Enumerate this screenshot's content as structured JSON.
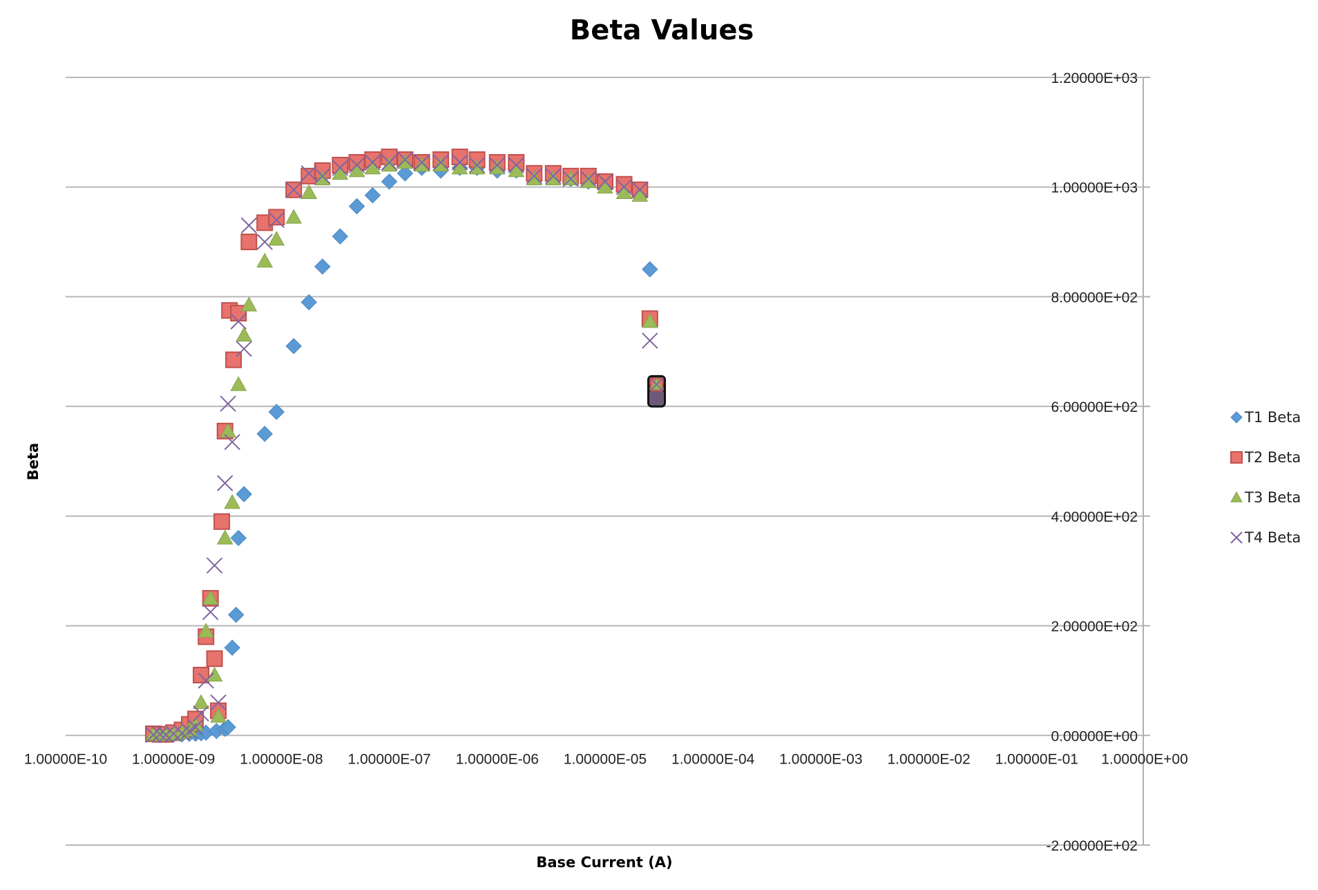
{
  "chart_data": {
    "type": "scatter",
    "title": "Beta Values",
    "xlabel": "Base Current (A)",
    "ylabel": "Beta",
    "x_scale": "log",
    "xlim": [
      1e-10,
      1
    ],
    "ylim": [
      -200,
      1200
    ],
    "x_tick_labels": [
      "1.00000E-10",
      "1.00000E-09",
      "1.00000E-08",
      "1.00000E-07",
      "1.00000E-06",
      "1.00000E-05",
      "1.00000E-04",
      "1.00000E-03",
      "1.00000E-02",
      "1.00000E-01",
      "1.00000E+00"
    ],
    "y_tick_labels": [
      "-2.00000E+02",
      "0.00000E+00",
      "2.00000E+02",
      "4.00000E+02",
      "6.00000E+02",
      "8.00000E+02",
      "1.00000E+03",
      "1.20000E+03"
    ],
    "y_tick_values": [
      -200,
      0,
      200,
      400,
      600,
      800,
      1000,
      1200
    ],
    "grid": true,
    "legend_position": "right",
    "series": [
      {
        "name": "T1 Beta",
        "marker": "diamond",
        "color": "#5b9bd5",
        "x": [
          6.5e-10,
          7.5e-10,
          8.5e-10,
          1e-09,
          1.2e-09,
          1.4e-09,
          1.6e-09,
          1.8e-09,
          2e-09,
          2.5e-09,
          3e-09,
          3.2e-09,
          3.5e-09,
          3.8e-09,
          4e-09,
          4.5e-09,
          7e-09,
          9e-09,
          1.3e-08,
          1.8e-08,
          2.4e-08,
          3.5e-08,
          5e-08,
          7e-08,
          1e-07,
          1.4e-07,
          2e-07,
          3e-07,
          4.5e-07,
          6.5e-07,
          1e-06,
          1.5e-06,
          2.2e-06,
          3.3e-06,
          4.8e-06,
          7e-06,
          1e-05,
          1.5e-05,
          2.1e-05,
          2.6e-05
        ],
        "y": [
          2,
          1,
          1,
          2,
          2,
          3,
          3,
          4,
          5,
          8,
          12,
          15,
          160,
          220,
          360,
          440,
          550,
          590,
          710,
          790,
          855,
          910,
          965,
          985,
          1010,
          1025,
          1035,
          1030,
          1035,
          1035,
          1030,
          1030,
          1025,
          1020,
          1015,
          1010,
          1005,
          1000,
          990,
          850
        ]
      },
      {
        "name": "T2 Beta",
        "marker": "square",
        "color": "#e8736c",
        "x": [
          6.5e-10,
          7.5e-10,
          8.5e-10,
          1e-09,
          1.2e-09,
          1.4e-09,
          1.6e-09,
          1.8e-09,
          2e-09,
          2.2e-09,
          2.4e-09,
          2.6e-09,
          2.8e-09,
          3e-09,
          3.3e-09,
          3.6e-09,
          4e-09,
          5e-09,
          7e-09,
          9e-09,
          1.3e-08,
          1.8e-08,
          2.4e-08,
          3.5e-08,
          5e-08,
          7e-08,
          1e-07,
          1.4e-07,
          2e-07,
          3e-07,
          4.5e-07,
          6.5e-07,
          1e-06,
          1.5e-06,
          2.2e-06,
          3.3e-06,
          4.8e-06,
          7e-06,
          1e-05,
          1.5e-05,
          2.1e-05,
          2.6e-05
        ],
        "y": [
          3,
          2,
          2,
          5,
          10,
          20,
          30,
          110,
          180,
          250,
          140,
          45,
          390,
          555,
          775,
          685,
          770,
          900,
          935,
          945,
          995,
          1020,
          1030,
          1040,
          1045,
          1050,
          1055,
          1050,
          1045,
          1050,
          1055,
          1050,
          1045,
          1045,
          1025,
          1025,
          1020,
          1020,
          1010,
          1005,
          995,
          760
        ]
      },
      {
        "name": "T3 Beta",
        "marker": "triangle",
        "color": "#9bbb59",
        "x": [
          6.5e-10,
          7.5e-10,
          8.5e-10,
          1e-09,
          1.2e-09,
          1.4e-09,
          1.6e-09,
          1.8e-09,
          2e-09,
          2.2e-09,
          2.4e-09,
          2.6e-09,
          3e-09,
          3.2e-09,
          3.5e-09,
          4e-09,
          4.5e-09,
          5e-09,
          7e-09,
          9e-09,
          1.3e-08,
          1.8e-08,
          2.4e-08,
          3.5e-08,
          5e-08,
          7e-08,
          1e-07,
          1.4e-07,
          2e-07,
          3e-07,
          4.5e-07,
          6.5e-07,
          1e-06,
          1.5e-06,
          2.2e-06,
          3.3e-06,
          4.8e-06,
          7e-06,
          1e-05,
          1.5e-05,
          2.1e-05,
          2.6e-05
        ],
        "y": [
          2,
          1,
          2,
          3,
          5,
          10,
          20,
          60,
          190,
          250,
          110,
          35,
          360,
          555,
          425,
          640,
          730,
          785,
          865,
          905,
          945,
          990,
          1015,
          1025,
          1030,
          1035,
          1040,
          1045,
          1040,
          1040,
          1035,
          1035,
          1035,
          1030,
          1015,
          1015,
          1015,
          1010,
          1000,
          990,
          985,
          755
        ]
      },
      {
        "name": "T4 Beta",
        "marker": "x",
        "color": "#8064a2",
        "x": [
          6.5e-10,
          7.5e-10,
          8.5e-10,
          1e-09,
          1.2e-09,
          1.4e-09,
          1.6e-09,
          1.8e-09,
          2e-09,
          2.2e-09,
          2.4e-09,
          2.6e-09,
          3e-09,
          3.2e-09,
          3.5e-09,
          4e-09,
          4.5e-09,
          5e-09,
          7e-09,
          9e-09,
          1.3e-08,
          1.8e-08,
          2.4e-08,
          3.5e-08,
          5e-08,
          7e-08,
          1e-07,
          1.4e-07,
          2e-07,
          3e-07,
          4.5e-07,
          6.5e-07,
          1e-06,
          1.5e-06,
          2.2e-06,
          3.3e-06,
          4.8e-06,
          7e-06,
          1e-05,
          1.5e-05,
          2.1e-05,
          2.6e-05
        ],
        "y": [
          1,
          2,
          1,
          3,
          4,
          8,
          15,
          40,
          100,
          225,
          310,
          60,
          460,
          605,
          535,
          755,
          705,
          930,
          900,
          940,
          995,
          1025,
          1020,
          1035,
          1040,
          1045,
          1045,
          1050,
          1045,
          1045,
          1045,
          1040,
          1040,
          1040,
          1020,
          1020,
          1015,
          1015,
          1010,
          1000,
          995,
          720
        ]
      }
    ],
    "cluster_points": [
      {
        "x": 3e-05,
        "y": 640
      },
      {
        "x": 3e-05,
        "y": 625
      },
      {
        "x": 3e-05,
        "y": 615
      }
    ]
  }
}
